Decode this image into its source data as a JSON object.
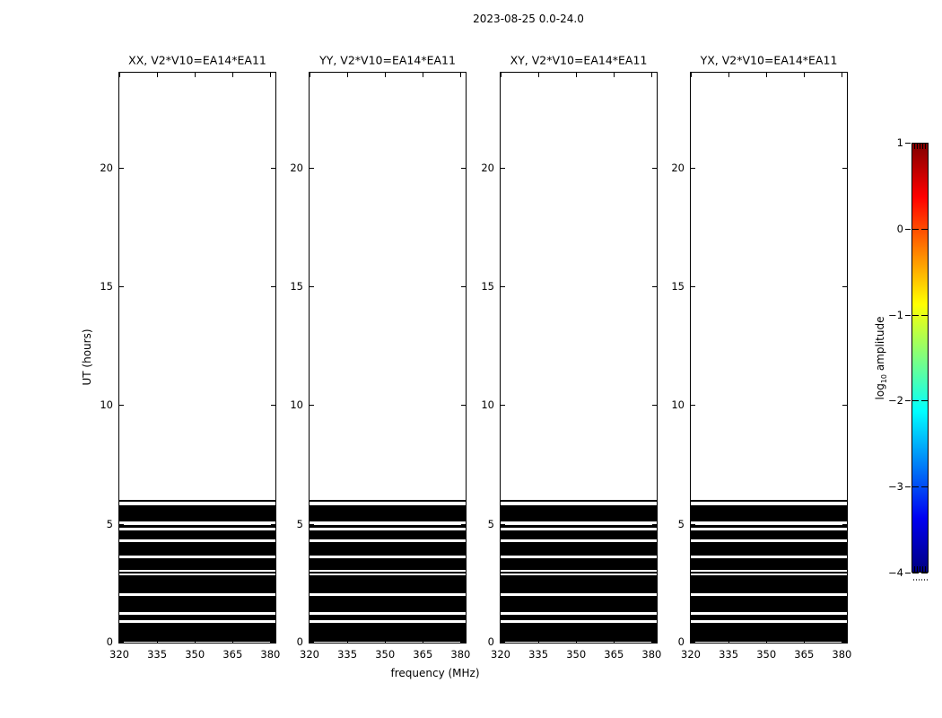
{
  "figure_title": "2023-08-25 0.0-24.0",
  "chart_data": {
    "type": "heatmap",
    "title": "2023-08-25 0.0-24.0",
    "subplot_titles": [
      "XX, V2*V10=EA14*EA11",
      "YY, V2*V10=EA14*EA11",
      "XY, V2*V10=EA14*EA11",
      "YX, V2*V10=EA14*EA11"
    ],
    "xlabel": "frequency (MHz)",
    "ylabel": "UT (hours)",
    "x_ticks": [
      320,
      335,
      350,
      365,
      380
    ],
    "x_tick_labels": [
      "320",
      "335",
      "350",
      "365",
      "380"
    ],
    "y_ticks": [
      0,
      5,
      10,
      15,
      20
    ],
    "y_tick_labels": [
      "0",
      "5",
      "10",
      "15",
      "20"
    ],
    "xlim": [
      320,
      382
    ],
    "ylim": [
      0,
      24
    ],
    "grid": false,
    "legend": false,
    "band_color": "#000000",
    "background_color": "#ffffff",
    "data_bands_ut_hours": [
      [
        0.03,
        0.85
      ],
      [
        0.94,
        1.17
      ],
      [
        1.28,
        1.97
      ],
      [
        2.08,
        2.83
      ],
      [
        2.91,
        2.99
      ],
      [
        3.06,
        3.55
      ],
      [
        3.67,
        4.23
      ],
      [
        4.35,
        4.72
      ],
      [
        4.82,
        4.95
      ],
      [
        5.12,
        5.8
      ],
      [
        5.92,
        6.01
      ]
    ],
    "colorbar": {
      "label_prefix": "log",
      "label_sub": "10",
      "label_suffix": " amplitude",
      "ticks": [
        "1",
        "0",
        "−1",
        "−2",
        "−3",
        "−4"
      ],
      "tick_values": [
        1,
        0,
        -1,
        -2,
        -3,
        -4
      ],
      "vmin": -4,
      "vmax": 1,
      "colormap": "jet",
      "gradient_stops": [
        {
          "pos": 0.0,
          "color": "#000080"
        },
        {
          "pos": 0.125,
          "color": "#0000f1"
        },
        {
          "pos": 0.375,
          "color": "#00ffff"
        },
        {
          "pos": 0.625,
          "color": "#ffff00"
        },
        {
          "pos": 0.875,
          "color": "#ff0000"
        },
        {
          "pos": 1.0,
          "color": "#800000"
        }
      ]
    }
  }
}
